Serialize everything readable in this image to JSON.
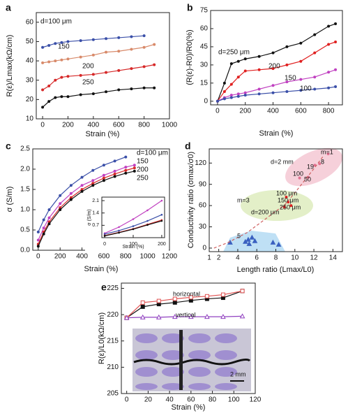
{
  "chart_data": [
    {
      "type": "line",
      "panel_label": "a",
      "xlabel": "Strain (%)",
      "ylabel": "R(ε)/Lmax(kΩ/cm)",
      "xlim": [
        -50,
        1000
      ],
      "ylim": [
        10,
        65
      ],
      "xticks": [
        0,
        200,
        400,
        600,
        800,
        1000
      ],
      "yticks": [
        10,
        20,
        30,
        40,
        50,
        60
      ],
      "x": [
        0,
        50,
        100,
        150,
        200,
        300,
        400,
        500,
        600,
        700,
        800,
        880
      ],
      "series": [
        {
          "name": "d=100 μm",
          "color": "#3a4fa8",
          "values": [
            47,
            48,
            49,
            49.5,
            50,
            50.5,
            51,
            51.5,
            52,
            52.5,
            53,
            null
          ]
        },
        {
          "name": "150",
          "color": "#d88a6a",
          "values": [
            39,
            39.5,
            40,
            40.5,
            41,
            42,
            43,
            44.5,
            45,
            46,
            47,
            48.5
          ]
        },
        {
          "name": "200",
          "color": "#d62828",
          "values": [
            25,
            27,
            30,
            31.5,
            32,
            32.5,
            33,
            34,
            35,
            36,
            37,
            38
          ]
        },
        {
          "name": "250",
          "color": "#111111",
          "values": [
            16,
            19,
            21,
            21.5,
            21.5,
            22.5,
            23,
            24,
            25,
            25.5,
            26,
            26
          ]
        }
      ]
    },
    {
      "type": "line",
      "panel_label": "b",
      "xlabel": "Strain (%)",
      "ylabel": "(R(ε)-R0)/R0(%)",
      "xlim": [
        -50,
        900
      ],
      "ylim": [
        -3,
        75
      ],
      "xticks": [
        0,
        200,
        400,
        600,
        800
      ],
      "yticks": [
        0,
        15,
        30,
        45,
        60,
        75
      ],
      "x": [
        0,
        50,
        100,
        150,
        200,
        300,
        400,
        500,
        600,
        700,
        800,
        850
      ],
      "series": [
        {
          "name": "d=250 μm",
          "color": "#111111",
          "values": [
            0,
            15,
            31,
            33,
            35,
            37,
            40,
            45,
            48,
            55,
            62,
            64
          ]
        },
        {
          "name": "200",
          "color": "#e02020",
          "values": [
            0,
            8,
            14,
            20,
            25,
            26,
            27,
            30,
            33,
            40,
            47,
            49
          ]
        },
        {
          "name": "150",
          "color": "#c040c0",
          "values": [
            0,
            3,
            5,
            6,
            7,
            10,
            13,
            16,
            18,
            20,
            24,
            26
          ]
        },
        {
          "name": "100",
          "color": "#3a4fa8",
          "values": [
            0,
            2,
            3,
            4,
            5,
            6,
            7,
            8,
            9,
            10,
            11,
            12
          ]
        }
      ]
    },
    {
      "type": "line",
      "panel_label": "c",
      "xlabel": "Strain (%)",
      "ylabel": "σ (S/m)",
      "xlim": [
        -50,
        1200
      ],
      "ylim": [
        0,
        2.5
      ],
      "xticks": [
        0,
        200,
        400,
        600,
        800,
        1000,
        1200
      ],
      "yticks": [
        {
          "value": 0,
          "label": "0.0"
        },
        0.5,
        {
          "value": 1,
          "label": "1.0"
        },
        1.5,
        {
          "value": 2,
          "label": "2.0"
        },
        2.5
      ],
      "x": [
        0,
        50,
        100,
        200,
        300,
        400,
        500,
        600,
        700,
        800,
        880
      ],
      "series": [
        {
          "name": "d=100 μm",
          "color": "#3a4fa8",
          "values": [
            0.45,
            0.75,
            1.0,
            1.35,
            1.6,
            1.8,
            1.97,
            2.1,
            2.2,
            2.3,
            null
          ]
        },
        {
          "name": "150",
          "color": "#c040c0",
          "values": [
            0.25,
            0.55,
            0.8,
            1.15,
            1.4,
            1.6,
            1.72,
            1.85,
            1.95,
            2.05,
            2.1
          ]
        },
        {
          "name": "200",
          "color": "#d62828",
          "values": [
            0.15,
            0.45,
            0.7,
            1.05,
            1.3,
            1.5,
            1.65,
            1.78,
            1.88,
            1.97,
            2.03
          ]
        },
        {
          "name": "250",
          "color": "#111111",
          "values": [
            0.1,
            0.4,
            0.65,
            1.0,
            1.25,
            1.45,
            1.6,
            1.72,
            1.82,
            1.9,
            1.95
          ]
        }
      ],
      "inset": {
        "type": "line",
        "xlabel": "Strain (%)",
        "ylabel": "σ (S/m)",
        "xlim": [
          -10,
          210
        ],
        "ylim": [
          0,
          2.3
        ],
        "xticks": [
          0,
          100,
          200
        ],
        "yticks": [
          0.7,
          1.4,
          2.1
        ],
        "x": [
          0,
          50,
          100,
          150,
          200
        ],
        "series": [
          {
            "color": "#c040c0",
            "values": [
              0.25,
              0.6,
              1.05,
              1.55,
              2.1
            ]
          },
          {
            "color": "#3a4fa8",
            "values": [
              0.2,
              0.4,
              0.65,
              0.95,
              1.3
            ]
          },
          {
            "color": "#d62828",
            "values": [
              0.12,
              0.3,
              0.5,
              0.75,
              1.0
            ]
          },
          {
            "color": "#111111",
            "values": [
              0.1,
              0.28,
              0.48,
              0.72,
              0.95
            ]
          }
        ]
      }
    },
    {
      "type": "scatter",
      "panel_label": "d",
      "xlabel": "Length ratio (Lmax/L0)",
      "ylabel": "Conductivity ratio (σmax/σ0)",
      "xlim": [
        1,
        15
      ],
      "ylim": [
        -5,
        140
      ],
      "xticks": [
        1,
        2,
        4,
        6,
        8,
        10,
        12,
        14
      ],
      "yticks": [
        0,
        30,
        60,
        90,
        120
      ],
      "series": [
        {
          "color": "#3a60c0",
          "marker": "triangle",
          "x": [
            3.2,
            4.8,
            5.1,
            5.5,
            5.8,
            5.2,
            7.7,
            8.3
          ],
          "values": [
            8,
            9,
            12,
            15,
            10,
            6,
            8,
            5
          ]
        },
        {
          "color": "#e02020",
          "marker": "circle",
          "x": [
            9.1,
            9.3,
            9.6,
            8.9
          ],
          "values": [
            72,
            65,
            60,
            58
          ]
        },
        {
          "color": "#e07090",
          "marker": "circle",
          "x": [
            10.5,
            11.4,
            12.1,
            12.6,
            13.5
          ],
          "values": [
            99,
            100,
            117,
            119,
            133
          ]
        },
        {
          "color": "#d06060",
          "marker": "none",
          "dash": true,
          "x": [
            1.5,
            3,
            5,
            7,
            9,
            10,
            11,
            12,
            13
          ],
          "values": [
            0,
            8,
            22,
            42,
            62,
            78,
            95,
            112,
            130
          ]
        }
      ],
      "annotations": [
        "d=2 mm",
        "m=1",
        "8",
        "19",
        "100",
        "50",
        "m=3",
        "100 μm",
        "150 μm",
        "250 μm",
        "d=200 μm",
        "5"
      ]
    },
    {
      "type": "line",
      "panel_label": "e",
      "xlabel": "Strain (%)",
      "ylabel": "R(ε)/L0(kΩ/cm)",
      "xlim": [
        -5,
        120
      ],
      "ylim": [
        205,
        226
      ],
      "xticks": [
        0,
        20,
        40,
        60,
        80,
        100,
        120
      ],
      "yticks": [
        205,
        210,
        215,
        220,
        225
      ],
      "x": [
        0,
        15,
        30,
        45,
        60,
        75,
        90,
        108
      ],
      "series": [
        {
          "color": "#111111",
          "marker": "square",
          "values": [
            219.4,
            221.5,
            222,
            222.3,
            222.7,
            223,
            223.2,
            224.5
          ]
        },
        {
          "color": "#e05050",
          "marker": "open-square",
          "values": [
            219.4,
            222.3,
            222.6,
            223,
            223.3,
            223.5,
            223.8,
            224.5
          ]
        },
        {
          "color": "#9040c0",
          "marker": "open-triangle",
          "values": [
            219.4,
            219.5,
            219.5,
            219.6,
            219.6,
            219.6,
            219.6,
            219.7
          ]
        }
      ],
      "annotations": [
        "horizontal",
        "vertical",
        "2 mm"
      ]
    }
  ]
}
